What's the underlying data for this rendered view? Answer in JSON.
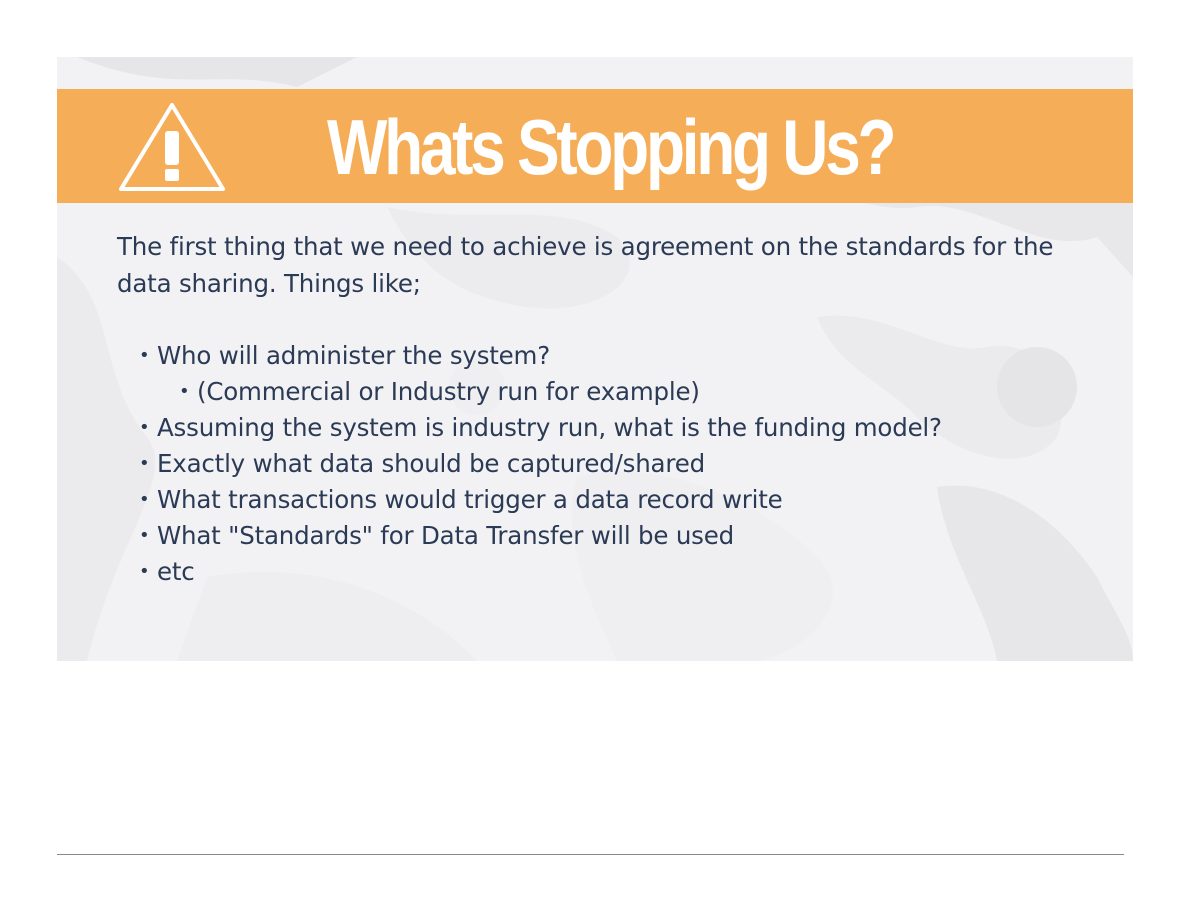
{
  "slide": {
    "title": "Whats Stopping Us?",
    "intro": "The first thing that we need to achieve is agreement on the standards for the data sharing. Things like;",
    "bullet_glyph": "•",
    "bullets": [
      {
        "text": "Who will administer the system?",
        "level": 1
      },
      {
        "text": "(Commercial or Industry run for example)",
        "level": 2
      },
      {
        "text": "Assuming the system is industry run, what is the funding model?",
        "level": 1
      },
      {
        "text": "Exactly what data should be captured/shared",
        "level": 1
      },
      {
        "text": "What transactions would trigger a data record write",
        "level": 1
      },
      {
        "text": "What \"Standards\" for Data Transfer will be used",
        "level": 1
      },
      {
        "text": "etc",
        "level": 1
      }
    ]
  },
  "icons": {
    "header": "warning-triangle-icon"
  },
  "colors": {
    "header_band": "#f6ad58",
    "title_text": "#ffffff",
    "body_text": "#2b3a55",
    "slide_background": "#f3f3f5",
    "footer_rule": "#8a8a8a"
  }
}
